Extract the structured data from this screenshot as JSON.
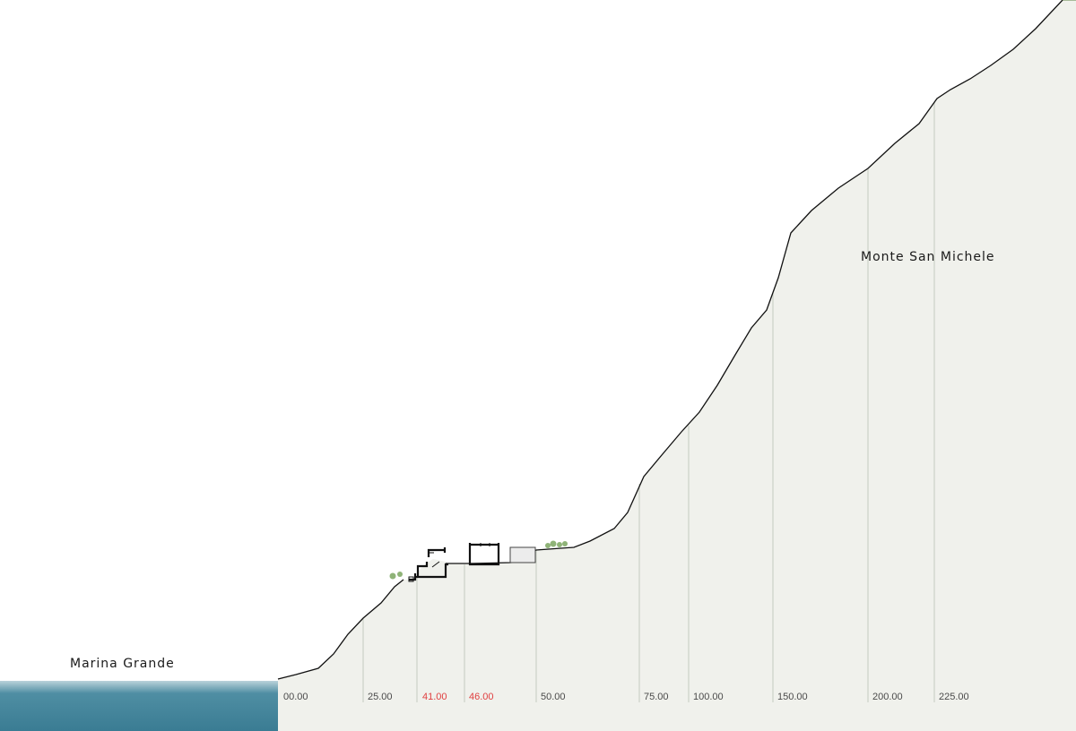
{
  "places": {
    "sea_side": "Marina Grande",
    "summit": "Monte San Michele"
  },
  "elevation_markers": [
    {
      "label": "00.00",
      "highlight": false
    },
    {
      "label": "25.00",
      "highlight": false
    },
    {
      "label": "41.00",
      "highlight": true
    },
    {
      "label": "46.00",
      "highlight": true
    },
    {
      "label": "50.00",
      "highlight": false
    },
    {
      "label": "75.00",
      "highlight": false
    },
    {
      "label": "100.00",
      "highlight": false
    },
    {
      "label": "150.00",
      "highlight": false
    },
    {
      "label": "200.00",
      "highlight": false
    },
    {
      "label": "225.00",
      "highlight": false
    }
  ],
  "colors": {
    "sea": "#3d7f96",
    "terrain_top": "#859e72",
    "terrain_bottom": "#eff0ea",
    "highlight_marker": "#e04040",
    "marker_text": "#4a4a4a",
    "gridline": "#c8cec3",
    "vegetation": "#8fb378",
    "profile_line": "#111111"
  }
}
